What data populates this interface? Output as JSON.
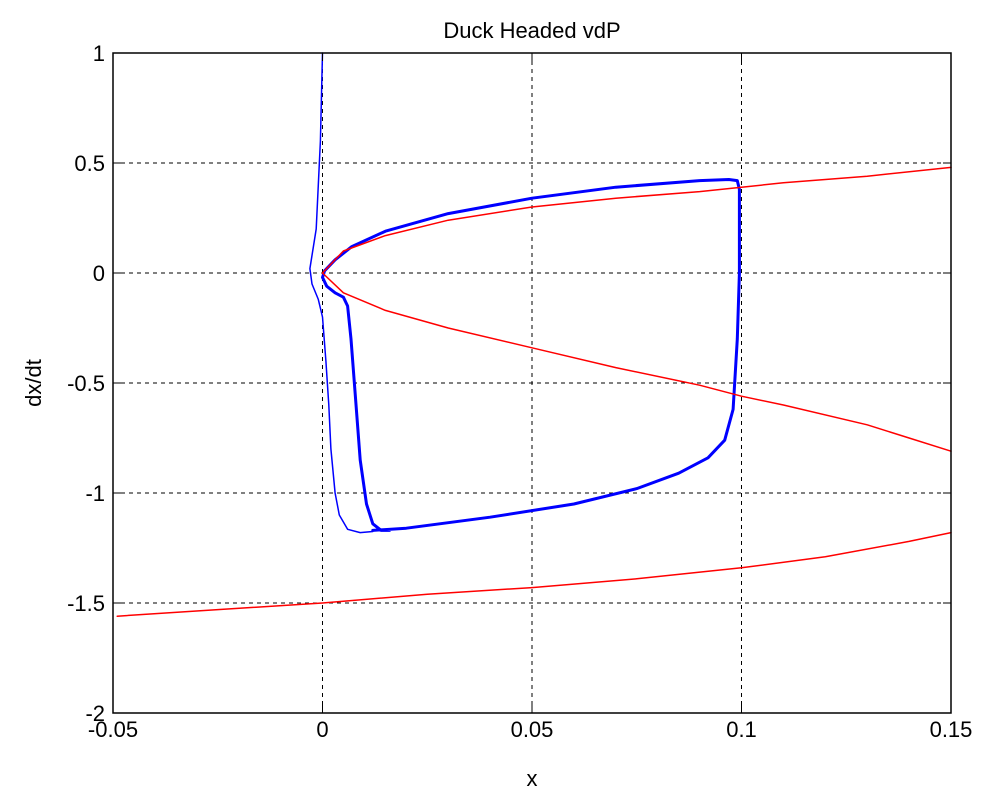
{
  "chart_data": {
    "type": "line",
    "title": "Duck Headed vdP",
    "xlabel": "x",
    "ylabel": "dx/dt",
    "xlim": [
      -0.05,
      0.15
    ],
    "ylim": [
      -2,
      1
    ],
    "xticks": [
      -0.05,
      0,
      0.05,
      0.1,
      0.15
    ],
    "xtick_labels": [
      "-0.05",
      "0",
      "0.05",
      "0.1",
      "0.15"
    ],
    "yticks": [
      -2,
      -1.5,
      -1,
      -0.5,
      0,
      0.5,
      1
    ],
    "ytick_labels": [
      "-2",
      "-1.5",
      "-1",
      "-0.5",
      "0",
      "0.5",
      "1"
    ],
    "grid": true,
    "grid_style": "dashed",
    "series": [
      {
        "color": "#0000ff",
        "width": 1.5,
        "points": [
          [
            0.0,
            1.0
          ],
          [
            -0.0002,
            0.85
          ],
          [
            -0.0005,
            0.6
          ],
          [
            -0.001,
            0.4
          ],
          [
            -0.0015,
            0.2
          ],
          [
            -0.003,
            0.02
          ],
          [
            -0.0025,
            -0.05
          ],
          [
            -0.001,
            -0.12
          ],
          [
            0.0,
            -0.2
          ],
          [
            0.0008,
            -0.4
          ],
          [
            0.0015,
            -0.6
          ],
          [
            0.002,
            -0.8
          ],
          [
            0.003,
            -1.0
          ],
          [
            0.004,
            -1.1
          ],
          [
            0.006,
            -1.165
          ],
          [
            0.009,
            -1.18
          ],
          [
            0.012,
            -1.175
          ]
        ]
      },
      {
        "color": "#0000ff",
        "width": 3,
        "points": [
          [
            0.012,
            -1.17
          ],
          [
            0.02,
            -1.16
          ],
          [
            0.04,
            -1.11
          ],
          [
            0.06,
            -1.05
          ],
          [
            0.075,
            -0.98
          ],
          [
            0.085,
            -0.91
          ],
          [
            0.092,
            -0.84
          ],
          [
            0.096,
            -0.76
          ],
          [
            0.098,
            -0.62
          ],
          [
            0.099,
            -0.3
          ],
          [
            0.0995,
            0.0
          ],
          [
            0.0995,
            0.3
          ],
          [
            0.0995,
            0.38
          ],
          [
            0.099,
            0.42
          ],
          [
            0.097,
            0.425
          ],
          [
            0.09,
            0.42
          ],
          [
            0.07,
            0.39
          ],
          [
            0.05,
            0.34
          ],
          [
            0.03,
            0.27
          ],
          [
            0.015,
            0.19
          ],
          [
            0.007,
            0.12
          ],
          [
            0.003,
            0.06
          ],
          [
            0.0005,
            0.01
          ],
          [
            0.0,
            -0.02
          ],
          [
            0.001,
            -0.06
          ],
          [
            0.003,
            -0.09
          ],
          [
            0.005,
            -0.11
          ],
          [
            0.006,
            -0.15
          ],
          [
            0.0068,
            -0.3
          ],
          [
            0.0078,
            -0.55
          ],
          [
            0.009,
            -0.85
          ],
          [
            0.0105,
            -1.05
          ],
          [
            0.012,
            -1.14
          ],
          [
            0.014,
            -1.17
          ],
          [
            0.016,
            -1.17
          ]
        ]
      },
      {
        "color": "#ff0000",
        "width": 1.5,
        "points": [
          [
            0.0,
            0.0
          ],
          [
            0.005,
            0.1
          ],
          [
            0.015,
            0.17
          ],
          [
            0.03,
            0.24
          ],
          [
            0.05,
            0.3
          ],
          [
            0.07,
            0.34
          ],
          [
            0.09,
            0.37
          ],
          [
            0.1,
            0.39
          ],
          [
            0.11,
            0.41
          ],
          [
            0.13,
            0.44
          ],
          [
            0.15,
            0.48
          ]
        ]
      },
      {
        "color": "#ff0000",
        "width": 1.5,
        "points": [
          [
            0.0,
            0.0
          ],
          [
            0.005,
            -0.09
          ],
          [
            0.015,
            -0.17
          ],
          [
            0.03,
            -0.25
          ],
          [
            0.05,
            -0.34
          ],
          [
            0.07,
            -0.43
          ],
          [
            0.09,
            -0.51
          ],
          [
            0.1,
            -0.56
          ],
          [
            0.11,
            -0.6
          ],
          [
            0.13,
            -0.69
          ],
          [
            0.14,
            -0.75
          ],
          [
            0.15,
            -0.81
          ]
        ]
      },
      {
        "color": "#ff0000",
        "width": 1.5,
        "points": [
          [
            -0.049,
            -1.56
          ],
          [
            -0.025,
            -1.53
          ],
          [
            0.0,
            -1.5
          ],
          [
            0.025,
            -1.46
          ],
          [
            0.05,
            -1.43
          ],
          [
            0.075,
            -1.39
          ],
          [
            0.1,
            -1.34
          ],
          [
            0.12,
            -1.29
          ],
          [
            0.14,
            -1.22
          ],
          [
            0.15,
            -1.18
          ]
        ]
      }
    ]
  }
}
